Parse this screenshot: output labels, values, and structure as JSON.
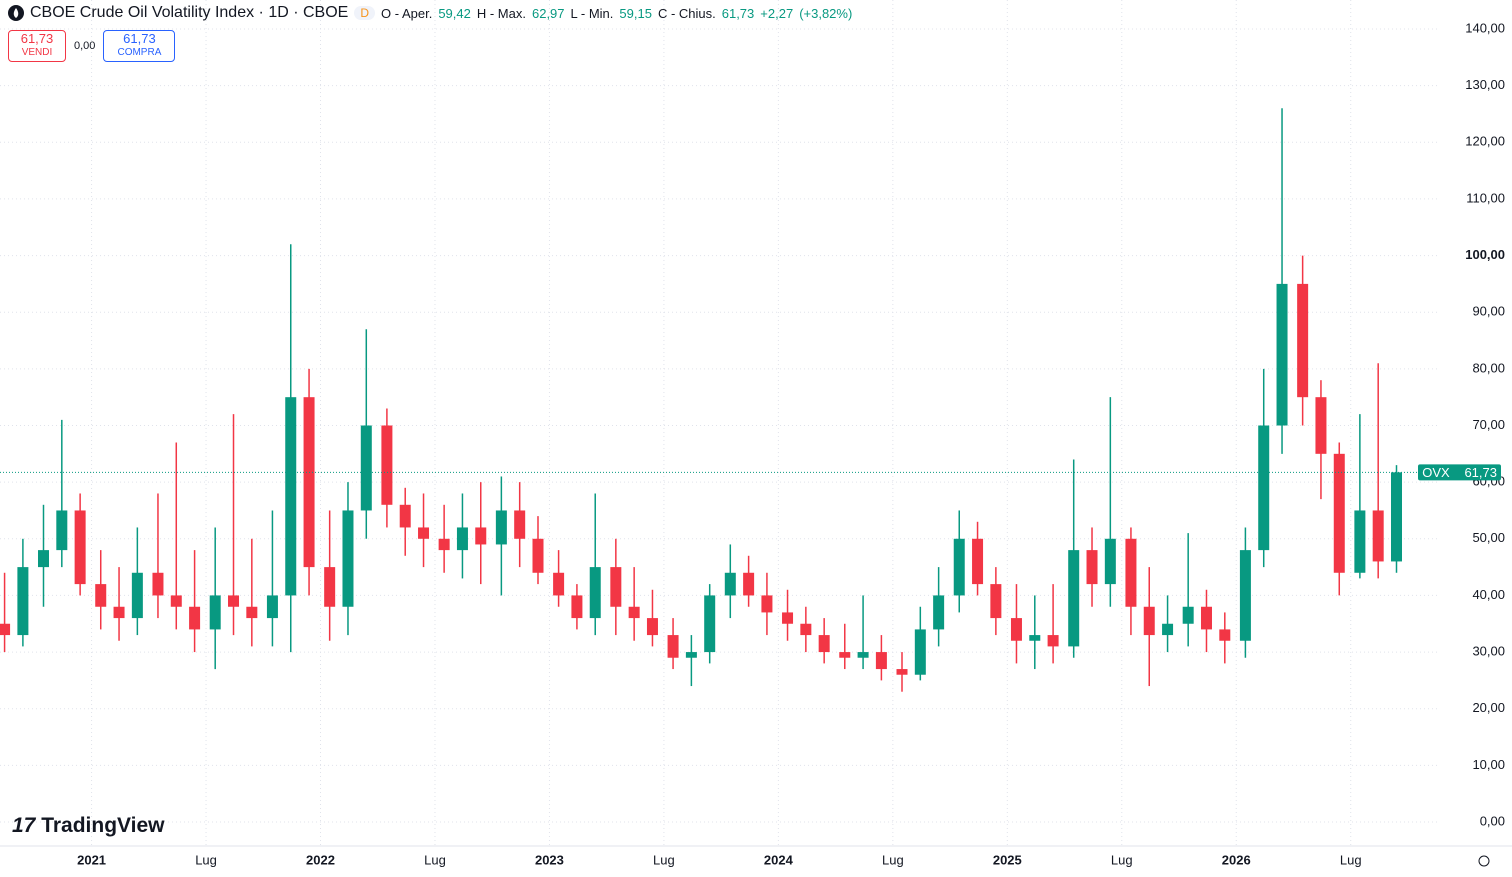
{
  "header": {
    "title": "CBOE Crude Oil Volatility Index · 1D · CBOE",
    "badge": "D",
    "open_label": "O - Aper.",
    "open": "59,42",
    "high_label": "H - Max.",
    "high": "62,97",
    "low_label": "L - Min.",
    "low": "59,15",
    "close_label": "C - Chius.",
    "close": "61,73",
    "change": "+2,27",
    "change_pct": "(+3,82%)"
  },
  "trade": {
    "sell_price": "61,73",
    "sell_label": "VENDI",
    "spread": "0,00",
    "buy_price": "61,73",
    "buy_label": "COMPRA"
  },
  "logo": "TradingView",
  "chart_data": {
    "type": "candlestick",
    "up_color": "#089981",
    "down_color": "#f23645",
    "grid": true,
    "x": [
      2020.62,
      2020.7,
      2020.79,
      2020.87,
      2020.95,
      2021.04,
      2021.12,
      2021.2,
      2021.29,
      2021.37,
      2021.45,
      2021.54,
      2021.62,
      2021.7,
      2021.79,
      2021.87,
      2021.95,
      2022.04,
      2022.12,
      2022.2,
      2022.29,
      2022.37,
      2022.45,
      2022.54,
      2022.62,
      2022.7,
      2022.79,
      2022.87,
      2022.95,
      2023.04,
      2023.12,
      2023.2,
      2023.29,
      2023.37,
      2023.45,
      2023.54,
      2023.62,
      2023.7,
      2023.79,
      2023.87,
      2023.95,
      2024.04,
      2024.12,
      2024.2,
      2024.29,
      2024.37,
      2024.45,
      2024.54,
      2024.62,
      2024.7,
      2024.79,
      2024.87,
      2024.95,
      2025.04,
      2025.12,
      2025.2,
      2025.29,
      2025.37,
      2025.45,
      2025.54,
      2025.62,
      2025.7,
      2025.79,
      2025.87,
      2025.95,
      2026.04,
      2026.12,
      2026.2,
      2026.29,
      2026.37,
      2026.45,
      2026.54,
      2026.62,
      2026.7
    ],
    "open": [
      35,
      33,
      45,
      48,
      55,
      42,
      38,
      36,
      44,
      40,
      38,
      34,
      40,
      38,
      36,
      40,
      75,
      45,
      38,
      55,
      70,
      56,
      52,
      50,
      48,
      52,
      49,
      55,
      50,
      44,
      40,
      36,
      45,
      38,
      36,
      33,
      29,
      30,
      40,
      44,
      40,
      37,
      35,
      33,
      30,
      29,
      30,
      27,
      26,
      34,
      40,
      50,
      42,
      36,
      32,
      33,
      31,
      48,
      42,
      50,
      38,
      33,
      35,
      38,
      34,
      32,
      48,
      70,
      95,
      75,
      65,
      44,
      55,
      46
    ],
    "high": [
      44,
      50,
      56,
      71,
      58,
      48,
      45,
      52,
      58,
      67,
      48,
      52,
      72,
      50,
      55,
      102,
      80,
      55,
      60,
      87,
      73,
      59,
      58,
      56,
      58,
      60,
      61,
      60,
      54,
      48,
      42,
      58,
      50,
      45,
      41,
      36,
      33,
      42,
      49,
      47,
      44,
      41,
      38,
      36,
      35,
      40,
      33,
      30,
      38,
      45,
      55,
      53,
      45,
      42,
      40,
      42,
      64,
      52,
      75,
      52,
      45,
      40,
      51,
      41,
      37,
      52,
      80,
      126,
      100,
      78,
      67,
      72,
      81,
      63
    ],
    "low": [
      30,
      31,
      38,
      45,
      40,
      34,
      32,
      33,
      36,
      34,
      30,
      27,
      33,
      31,
      31,
      30,
      40,
      32,
      33,
      50,
      52,
      47,
      45,
      44,
      43,
      42,
      40,
      45,
      42,
      38,
      34,
      33,
      33,
      32,
      31,
      27,
      24,
      28,
      36,
      38,
      33,
      32,
      30,
      28,
      27,
      27,
      25,
      23,
      25,
      31,
      37,
      40,
      33,
      28,
      27,
      28,
      29,
      38,
      38,
      33,
      24,
      30,
      31,
      30,
      28,
      29,
      45,
      65,
      70,
      57,
      40,
      43,
      43,
      44
    ],
    "close": [
      33,
      45,
      48,
      55,
      42,
      38,
      36,
      44,
      40,
      38,
      34,
      40,
      38,
      36,
      40,
      75,
      45,
      38,
      55,
      70,
      56,
      52,
      50,
      48,
      52,
      49,
      55,
      50,
      44,
      40,
      36,
      45,
      38,
      36,
      33,
      29,
      30,
      40,
      44,
      40,
      37,
      35,
      33,
      30,
      29,
      30,
      27,
      26,
      34,
      40,
      50,
      42,
      36,
      32,
      33,
      31,
      48,
      42,
      50,
      38,
      33,
      35,
      38,
      34,
      32,
      48,
      70,
      95,
      75,
      65,
      44,
      55,
      46,
      61.73
    ],
    "xlim": [
      2020.6,
      2026.89
    ],
    "xticks": [
      {
        "value": 2021,
        "label": "2021"
      },
      {
        "value": 2021.5,
        "label": "Lug"
      },
      {
        "value": 2022,
        "label": "2022"
      },
      {
        "value": 2022.5,
        "label": "Lug"
      },
      {
        "value": 2023,
        "label": "2023"
      },
      {
        "value": 2023.5,
        "label": "Lug"
      },
      {
        "value": 2024,
        "label": "2024"
      },
      {
        "value": 2024.5,
        "label": "Lug"
      },
      {
        "value": 2025,
        "label": "2025"
      },
      {
        "value": 2025.5,
        "label": "Lug"
      },
      {
        "value": 2026,
        "label": "2026"
      },
      {
        "value": 2026.5,
        "label": "Lug"
      }
    ],
    "ylim": [
      0,
      140
    ],
    "yticks": [
      {
        "value": 0,
        "label": "0,00"
      },
      {
        "value": 10,
        "label": "10,00"
      },
      {
        "value": 20,
        "label": "20,00"
      },
      {
        "value": 30,
        "label": "30,00"
      },
      {
        "value": 40,
        "label": "40,00"
      },
      {
        "value": 50,
        "label": "50,00"
      },
      {
        "value": 60,
        "label": "60,00"
      },
      {
        "value": 70,
        "label": "70,00"
      },
      {
        "value": 80,
        "label": "80,00"
      },
      {
        "value": 90,
        "label": "90,00"
      },
      {
        "value": 100,
        "label": "100,00"
      },
      {
        "value": 110,
        "label": "110,00"
      },
      {
        "value": 120,
        "label": "120,00"
      },
      {
        "value": 130,
        "label": "130,00"
      },
      {
        "value": 140,
        "label": "140,00"
      }
    ],
    "last_price": {
      "value": 61.73,
      "label": "61,73"
    },
    "symbol": "OVX"
  }
}
